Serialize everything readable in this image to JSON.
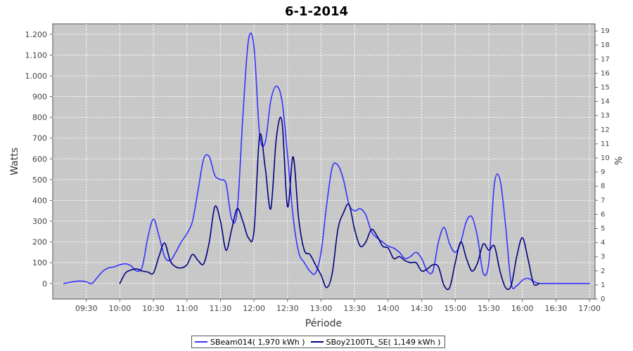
{
  "chart_data": {
    "type": "line",
    "title": "6-1-2014",
    "xlabel": "Période",
    "ylabel": "Watts",
    "y2label": "%",
    "xlim": [
      "09:00",
      "17:05"
    ],
    "ylim": [
      -75,
      1250
    ],
    "y2lim": [
      0,
      19.5
    ],
    "x_ticks": [
      "09:30",
      "10:00",
      "10:30",
      "11:00",
      "11:30",
      "12:00",
      "12:30",
      "13:00",
      "13:30",
      "14:00",
      "14:30",
      "15:00",
      "15:30",
      "16:00",
      "16:30",
      "17:00"
    ],
    "y_ticks": [
      0,
      100,
      200,
      300,
      400,
      500,
      600,
      700,
      800,
      900,
      1000,
      1100,
      1200
    ],
    "y_tick_labels": [
      "0",
      "100",
      "200",
      "300",
      "400",
      "500",
      "600",
      "700",
      "800",
      "900",
      "1.000",
      "1.100",
      "1.200"
    ],
    "y2_ticks": [
      0,
      1,
      2,
      3,
      4,
      5,
      6,
      7,
      8,
      9,
      10,
      11,
      12,
      13,
      14,
      15,
      16,
      17,
      18,
      19
    ],
    "grid": true,
    "legend_position": "bottom",
    "series": [
      {
        "name": "SBeam014( 1,970 kWh )",
        "color": "#3333ff",
        "x": [
          "09:10",
          "09:20",
          "09:25",
          "09:30",
          "09:35",
          "09:40",
          "09:45",
          "09:50",
          "09:55",
          "10:00",
          "10:05",
          "10:10",
          "10:15",
          "10:20",
          "10:25",
          "10:30",
          "10:35",
          "10:40",
          "10:45",
          "10:50",
          "10:55",
          "11:00",
          "11:05",
          "11:10",
          "11:15",
          "11:20",
          "11:25",
          "11:30",
          "11:35",
          "11:40",
          "11:45",
          "11:50",
          "11:55",
          "12:00",
          "12:05",
          "12:10",
          "12:15",
          "12:20",
          "12:25",
          "12:30",
          "12:35",
          "12:40",
          "12:45",
          "12:50",
          "12:55",
          "13:00",
          "13:05",
          "13:10",
          "13:15",
          "13:20",
          "13:25",
          "13:30",
          "13:35",
          "13:40",
          "13:45",
          "13:50",
          "13:55",
          "14:00",
          "14:05",
          "14:10",
          "14:15",
          "14:20",
          "14:25",
          "14:30",
          "14:35",
          "14:40",
          "14:45",
          "14:50",
          "14:55",
          "15:00",
          "15:05",
          "15:10",
          "15:15",
          "15:20",
          "15:25",
          "15:30",
          "15:35",
          "15:40",
          "15:45",
          "15:50",
          "15:55",
          "16:00",
          "16:05",
          "16:10",
          "16:15",
          "16:20",
          "16:25",
          "16:30",
          "16:40",
          "16:50",
          "17:00"
        ],
        "values": [
          0,
          10,
          12,
          8,
          0,
          30,
          60,
          75,
          80,
          90,
          95,
          85,
          60,
          80,
          220,
          310,
          230,
          130,
          110,
          150,
          200,
          240,
          300,
          450,
          600,
          610,
          520,
          500,
          480,
          310,
          350,
          800,
          1170,
          1140,
          720,
          680,
          880,
          950,
          880,
          620,
          320,
          150,
          100,
          60,
          50,
          150,
          380,
          560,
          570,
          500,
          380,
          350,
          360,
          330,
          250,
          220,
          200,
          180,
          170,
          150,
          120,
          130,
          150,
          120,
          60,
          60,
          200,
          270,
          190,
          150,
          200,
          300,
          320,
          220,
          50,
          100,
          480,
          500,
          280,
          0,
          -10,
          15,
          25,
          10,
          0,
          0,
          0,
          0,
          0,
          0,
          0
        ]
      },
      {
        "name": "SBoy2100TL_SE( 1,149 kWh )",
        "color": "#000080",
        "x": [
          "10:00",
          "10:05",
          "10:10",
          "10:15",
          "10:20",
          "10:25",
          "10:30",
          "10:35",
          "10:40",
          "10:45",
          "10:50",
          "10:55",
          "11:00",
          "11:05",
          "11:10",
          "11:15",
          "11:20",
          "11:25",
          "11:30",
          "11:35",
          "11:40",
          "11:45",
          "11:50",
          "11:55",
          "12:00",
          "12:05",
          "12:10",
          "12:15",
          "12:20",
          "12:25",
          "12:30",
          "12:35",
          "12:40",
          "12:45",
          "12:50",
          "12:55",
          "13:00",
          "13:05",
          "13:10",
          "13:15",
          "13:20",
          "13:25",
          "13:30",
          "13:35",
          "13:40",
          "13:45",
          "13:50",
          "13:55",
          "14:00",
          "14:05",
          "14:10",
          "14:15",
          "14:20",
          "14:25",
          "14:30",
          "14:35",
          "14:40",
          "14:45",
          "14:50",
          "14:55",
          "15:00",
          "15:05",
          "15:10",
          "15:15",
          "15:20",
          "15:25",
          "15:30",
          "15:35",
          "15:40",
          "15:45",
          "15:50",
          "15:55",
          "16:00",
          "16:05",
          "16:10",
          "16:15"
        ],
        "values": [
          0,
          50,
          65,
          70,
          60,
          55,
          50,
          130,
          195,
          110,
          80,
          75,
          90,
          140,
          110,
          95,
          200,
          370,
          300,
          160,
          260,
          360,
          300,
          220,
          250,
          710,
          560,
          360,
          700,
          780,
          370,
          610,
          310,
          160,
          140,
          90,
          40,
          -20,
          50,
          260,
          340,
          380,
          260,
          180,
          200,
          260,
          230,
          180,
          170,
          120,
          130,
          110,
          100,
          100,
          60,
          70,
          90,
          80,
          -10,
          -20,
          100,
          200,
          120,
          60,
          100,
          190,
          160,
          180,
          60,
          -20,
          -10,
          130,
          220,
          120,
          0,
          0
        ]
      }
    ]
  }
}
